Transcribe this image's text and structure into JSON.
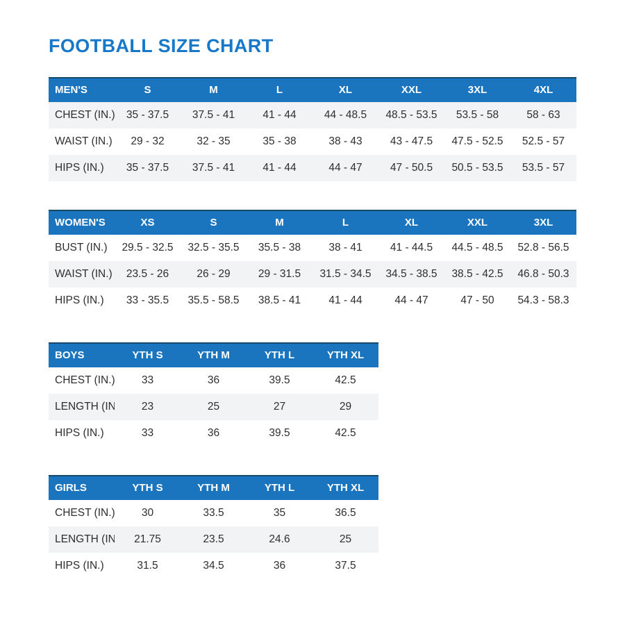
{
  "page": {
    "title": "FOOTBALL SIZE CHART"
  },
  "colors": {
    "accent": "#1a74be",
    "title": "#1777c9",
    "stripe": "#f2f3f5",
    "text": "#2e2e2e",
    "header_text": "#ffffff",
    "table_top_border": "#16486b"
  },
  "chart_data": [
    {
      "type": "table",
      "name": "MEN'S",
      "stripe": "odd",
      "columns": [
        "MEN'S",
        "S",
        "M",
        "L",
        "XL",
        "XXL",
        "3XL",
        "4XL"
      ],
      "rows": [
        [
          "CHEST (IN.)",
          "35 - 37.5",
          "37.5 - 41",
          "41 - 44",
          "44 - 48.5",
          "48.5 - 53.5",
          "53.5 - 58",
          "58 - 63"
        ],
        [
          "WAIST (IN.)",
          "29 - 32",
          "32 - 35",
          "35 - 38",
          "38 - 43",
          "43 - 47.5",
          "47.5 - 52.5",
          "52.5 - 57"
        ],
        [
          "HIPS (IN.)",
          "35 - 37.5",
          "37.5 - 41",
          "41 - 44",
          "44 - 47",
          "47 - 50.5",
          "50.5 - 53.5",
          "53.5 - 57"
        ]
      ]
    },
    {
      "type": "table",
      "name": "WOMEN'S",
      "stripe": "even",
      "columns": [
        "WOMEN'S",
        "XS",
        "S",
        "M",
        "L",
        "XL",
        "XXL",
        "3XL"
      ],
      "rows": [
        [
          "BUST (IN.)",
          "29.5 - 32.5",
          "32.5 - 35.5",
          "35.5 - 38",
          "38 - 41",
          "41 - 44.5",
          "44.5 - 48.5",
          "52.8 - 56.5"
        ],
        [
          "WAIST (IN.)",
          "23.5 - 26",
          "26 - 29",
          "29 - 31.5",
          "31.5 - 34.5",
          "34.5 - 38.5",
          "38.5 - 42.5",
          "46.8 - 50.3"
        ],
        [
          "HIPS (IN.)",
          "33 - 35.5",
          "35.5 - 58.5",
          "38.5 - 41",
          "41 - 44",
          "44 - 47",
          "47 - 50",
          "54.3 - 58.3"
        ]
      ]
    },
    {
      "type": "table",
      "name": "BOYS",
      "stripe": "even",
      "columns": [
        "BOYS",
        "YTH S",
        "YTH M",
        "YTH L",
        "YTH XL"
      ],
      "rows": [
        [
          "CHEST (IN.)",
          "33",
          "36",
          "39.5",
          "42.5"
        ],
        [
          "LENGTH (IN.)",
          "23",
          "25",
          "27",
          "29"
        ],
        [
          "HIPS (IN.)",
          "33",
          "36",
          "39.5",
          "42.5"
        ]
      ]
    },
    {
      "type": "table",
      "name": "GIRLS",
      "stripe": "even",
      "columns": [
        "GIRLS",
        "YTH S",
        "YTH M",
        "YTH L",
        "YTH XL"
      ],
      "rows": [
        [
          "CHEST (IN.)",
          "30",
          "33.5",
          "35",
          "36.5"
        ],
        [
          "LENGTH (IN.)",
          "21.75",
          "23.5",
          "24.6",
          "25"
        ],
        [
          "HIPS (IN.)",
          "31.5",
          "34.5",
          "36",
          "37.5"
        ]
      ]
    }
  ]
}
